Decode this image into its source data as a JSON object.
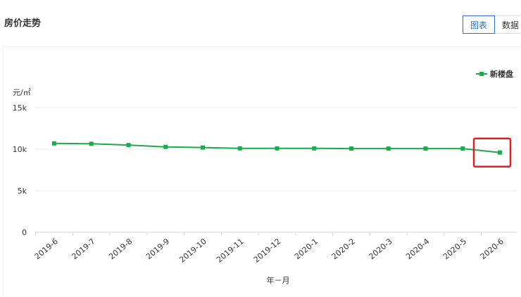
{
  "header": {
    "title": "房价走势",
    "tabs": [
      {
        "label": "图表",
        "active": true
      },
      {
        "label": "数据",
        "active": false
      }
    ]
  },
  "chart_data": {
    "type": "line",
    "unit_label": "元/㎡",
    "xlabel": "年－月",
    "ylabel": "",
    "ylim": [
      0,
      15000
    ],
    "yticks": [
      {
        "value": 0,
        "label": "0"
      },
      {
        "value": 5000,
        "label": "5k"
      },
      {
        "value": 10000,
        "label": "10k"
      },
      {
        "value": 15000,
        "label": "15k"
      }
    ],
    "categories": [
      "2019-6",
      "2019-7",
      "2019-8",
      "2019-9",
      "2019-10",
      "2019-11",
      "2019-12",
      "2020-1",
      "2020-2",
      "2020-3",
      "2020-4",
      "2020-5",
      "2020-6"
    ],
    "series": [
      {
        "name": "新楼盘",
        "color": "#1aac4b",
        "values": [
          10700,
          10650,
          10500,
          10280,
          10200,
          10100,
          10100,
          10100,
          10080,
          10080,
          10080,
          10080,
          9600
        ]
      }
    ],
    "legend_position": "top-right",
    "grid": true,
    "highlight": {
      "category": "2020-6",
      "color": "#e02020"
    }
  }
}
